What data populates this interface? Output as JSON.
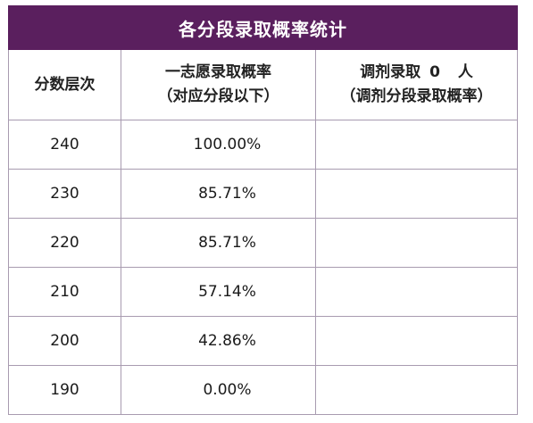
{
  "table": {
    "title": "各分段录取概率统计",
    "headers": {
      "score": "分数层次",
      "rate_line1": "一志愿录取概率",
      "rate_line2": "（对应分段以下）",
      "adj_prefix": "调剂录取",
      "adj_count": "0",
      "adj_suffix": "人",
      "adj_line2": "（调剂分段录取概率）"
    },
    "rows": [
      {
        "score": "240",
        "rate": "100.00%",
        "adjusted": ""
      },
      {
        "score": "230",
        "rate": "85.71%",
        "adjusted": ""
      },
      {
        "score": "220",
        "rate": "85.71%",
        "adjusted": ""
      },
      {
        "score": "210",
        "rate": "57.14%",
        "adjusted": ""
      },
      {
        "score": "200",
        "rate": "42.86%",
        "adjusted": ""
      },
      {
        "score": "190",
        "rate": "0.00%",
        "adjusted": ""
      }
    ]
  },
  "colors": {
    "title_bg": "#5a1f5e",
    "title_text": "#ffffff",
    "border": "#a89bb0"
  }
}
